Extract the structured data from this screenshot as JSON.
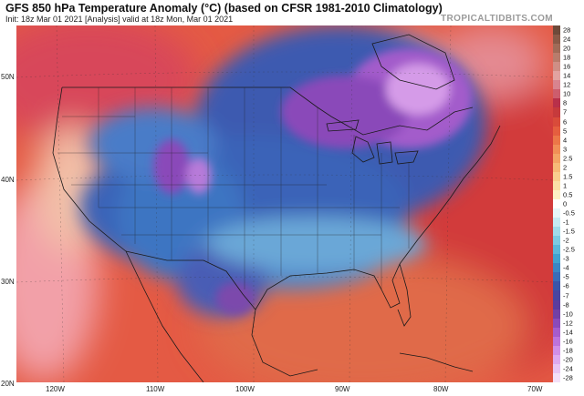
{
  "header": {
    "title": "GFS 850 hPa Temperature Anomaly (°C) (based on CFSR 1981-2010 Climatology)",
    "subtitle": "Init: 18z Mar 01 2021   [Analysis]   valid at 18z Mon, Mar 01 2021",
    "site": "TROPICALTIDBITS.COM"
  },
  "axes": {
    "lat_labels": [
      "50N",
      "40N",
      "30N",
      "20N"
    ],
    "lon_labels": [
      "120W",
      "110W",
      "100W",
      "90W",
      "80W",
      "70W"
    ]
  },
  "colorbar": {
    "levels": [
      {
        "label": "28",
        "color": "#6e4a3a"
      },
      {
        "label": "24",
        "color": "#8a5a48"
      },
      {
        "label": "20",
        "color": "#a06b58"
      },
      {
        "label": "18",
        "color": "#b87c6c"
      },
      {
        "label": "16",
        "color": "#cf8f86"
      },
      {
        "label": "14",
        "color": "#e2a3a1"
      },
      {
        "label": "12",
        "color": "#d8848f"
      },
      {
        "label": "10",
        "color": "#cd5d6d"
      },
      {
        "label": "8",
        "color": "#b8304a"
      },
      {
        "label": "7",
        "color": "#c63a3c"
      },
      {
        "label": "6",
        "color": "#d94b3a"
      },
      {
        "label": "5",
        "color": "#e55e3f"
      },
      {
        "label": "4",
        "color": "#ec7748"
      },
      {
        "label": "3",
        "color": "#f18f57"
      },
      {
        "label": "2.5",
        "color": "#f4a566"
      },
      {
        "label": "2",
        "color": "#f7bb78"
      },
      {
        "label": "1.5",
        "color": "#f9cf8e"
      },
      {
        "label": "1",
        "color": "#fbe0a6"
      },
      {
        "label": "0.5",
        "color": "#fdf0c4"
      },
      {
        "label": "0",
        "color": "#ffffff"
      },
      {
        "label": "-0.5",
        "color": "#e6f6fa"
      },
      {
        "label": "-1",
        "color": "#c5eaf3"
      },
      {
        "label": "-1.5",
        "color": "#a0dbea"
      },
      {
        "label": "-2",
        "color": "#7ccbe2"
      },
      {
        "label": "-2.5",
        "color": "#5bb8d9"
      },
      {
        "label": "-3",
        "color": "#41a2cf"
      },
      {
        "label": "-4",
        "color": "#3b86c4"
      },
      {
        "label": "-5",
        "color": "#3a6cb7"
      },
      {
        "label": "-6",
        "color": "#3a55a8"
      },
      {
        "label": "-7",
        "color": "#4a45a0"
      },
      {
        "label": "-8",
        "color": "#5b3c9e"
      },
      {
        "label": "-10",
        "color": "#7340a6"
      },
      {
        "label": "-12",
        "color": "#8b4aba"
      },
      {
        "label": "-14",
        "color": "#a65ccc"
      },
      {
        "label": "-16",
        "color": "#bd73db"
      },
      {
        "label": "-18",
        "color": "#d18fe6"
      },
      {
        "label": "-20",
        "color": "#deaaee"
      },
      {
        "label": "-24",
        "color": "#e9c6f3"
      },
      {
        "label": "-28",
        "color": "#f3e0f8"
      }
    ]
  },
  "colors": {
    "warm": "#d94b3a",
    "cold": "#3a55a8",
    "extreme_cold": "#bd73db",
    "border": "#1a1a1a"
  }
}
